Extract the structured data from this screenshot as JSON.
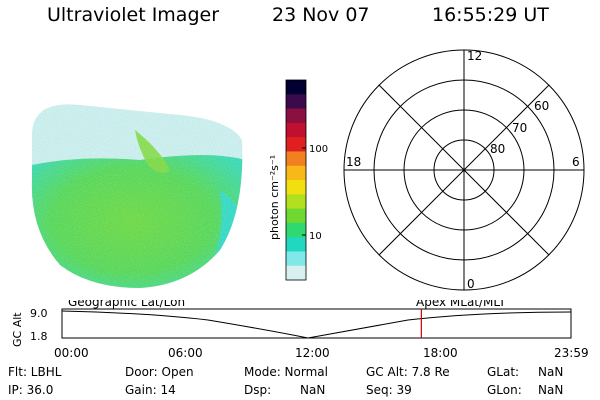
{
  "header": {
    "title": "Ultraviolet Imager",
    "date": "23 Nov 07",
    "time": "16:55:29 UT"
  },
  "colorbar": {
    "label": "photon cm⁻²s⁻¹",
    "ticks": [
      "100",
      "10"
    ],
    "colors": [
      "#000033",
      "#3a0a4a",
      "#8a1040",
      "#c01030",
      "#e02020",
      "#f08020",
      "#f8b818",
      "#f0e010",
      "#b0e020",
      "#70d830",
      "#30d870",
      "#20d8c0",
      "#80e8e8",
      "#d8f0f0"
    ]
  },
  "polar": {
    "mlat_labels": [
      "60",
      "70",
      "80"
    ],
    "mlt_labels": {
      "top": "12",
      "left": "18",
      "right": "6",
      "bottom": "0"
    }
  },
  "strip": {
    "title_left": "Geographic Lat/Lon",
    "title_right": "Apex MLat/MLT",
    "ylabel": "GC Alt",
    "y_ticks": [
      "9.0",
      "1.8"
    ],
    "x_ticks": [
      "00:00",
      "06:00",
      "12:00",
      "18:00",
      "23:59"
    ],
    "marker_color": "#cc0000",
    "marker_time_fraction": 0.706
  },
  "info": {
    "row1": {
      "flt": "Flt: LBHL",
      "door": "Door: Open",
      "mode": "Mode: Normal",
      "gcalt": "GC Alt: 7.8 Re",
      "glat_label": "GLat:",
      "glat_val": "NaN"
    },
    "row2": {
      "ip": "IP: 36.0",
      "gain": "Gain: 14",
      "dsp_label": "Dsp:",
      "dsp_val": "NaN",
      "seq": "Seq: 39",
      "glon_label": "GLon:",
      "glon_val": "NaN"
    }
  }
}
